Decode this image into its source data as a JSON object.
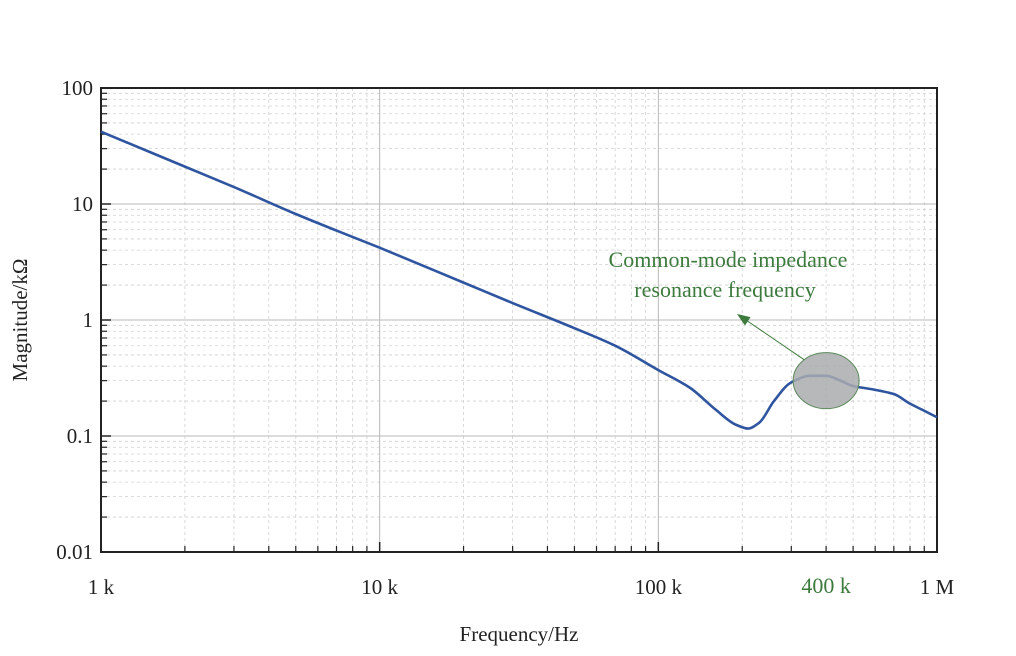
{
  "chart_data": {
    "type": "line",
    "title": "",
    "xlabel": "Frequency/Hz",
    "ylabel": "Magnitude/kΩ",
    "x_scale": "log",
    "y_scale": "log",
    "xlim": [
      1000,
      1000000
    ],
    "ylim": [
      0.01,
      100
    ],
    "x_ticks": [
      {
        "value": 1000,
        "label": "1 k"
      },
      {
        "value": 10000,
        "label": "10 k"
      },
      {
        "value": 100000,
        "label": "100 k"
      },
      {
        "value": 1000000,
        "label": "1 M"
      }
    ],
    "y_ticks": [
      {
        "value": 0.01,
        "label": "0.01"
      },
      {
        "value": 0.1,
        "label": "0.1"
      },
      {
        "value": 1,
        "label": "1"
      },
      {
        "value": 10,
        "label": "10"
      },
      {
        "value": 100,
        "label": "100"
      }
    ],
    "grid": true,
    "series": [
      {
        "color": "#2f55a0",
        "x": [
          1000,
          1500,
          2000,
          3000,
          5000,
          7000,
          10000,
          20000,
          30000,
          50000,
          70000,
          100000,
          130000,
          160000,
          190000,
          210000,
          230000,
          260000,
          300000,
          350000,
          400000,
          450000,
          500000,
          600000,
          700000,
          800000,
          900000,
          1000000
        ],
        "y": [
          42,
          28,
          21,
          14,
          8.2,
          5.9,
          4.2,
          2.1,
          1.4,
          0.85,
          0.6,
          0.37,
          0.26,
          0.17,
          0.125,
          0.116,
          0.13,
          0.2,
          0.29,
          0.33,
          0.33,
          0.3,
          0.27,
          0.25,
          0.23,
          0.19,
          0.165,
          0.145
        ]
      }
    ],
    "annotations": [
      {
        "text_lines": [
          "Common-mode impedance",
          "resonance frequency"
        ],
        "color": "#3d7a3d",
        "target": {
          "x": 400000,
          "y": 0.3
        }
      },
      {
        "text": "400 k",
        "color": "#3d7a3d",
        "x": 400000
      }
    ]
  }
}
